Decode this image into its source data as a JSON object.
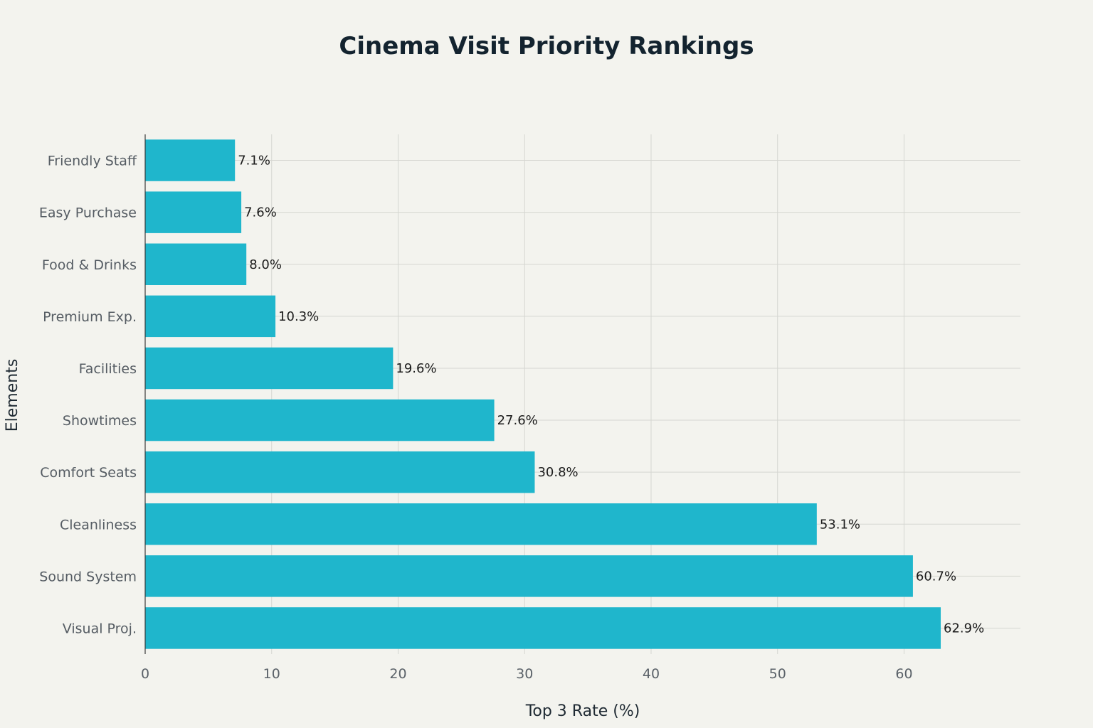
{
  "chart_data": {
    "type": "bar",
    "orientation": "horizontal",
    "title": "Cinema Visit Priority Rankings",
    "xlabel": "Top 3 Rate (%)",
    "ylabel": "Elements",
    "categories": [
      "Friendly Staff",
      "Easy Purchase",
      "Food & Drinks",
      "Premium Exp.",
      "Facilities",
      "Showtimes",
      "Comfort Seats",
      "Cleanliness",
      "Sound System",
      "Visual Proj."
    ],
    "values": [
      7.1,
      7.6,
      8.0,
      10.3,
      19.6,
      27.6,
      30.8,
      53.1,
      60.7,
      62.9
    ],
    "data_labels": [
      "7.1%",
      "7.6%",
      "8.0%",
      "10.3%",
      "19.6%",
      "27.6%",
      "30.8%",
      "53.1%",
      "60.7%",
      "62.9%"
    ],
    "xlim": [
      0,
      69.2
    ],
    "xticks": [
      0,
      10,
      20,
      30,
      40,
      50,
      60
    ],
    "grid": true,
    "colors": {
      "bar": "#1fb6cc",
      "background": "#f3f3ee"
    }
  }
}
